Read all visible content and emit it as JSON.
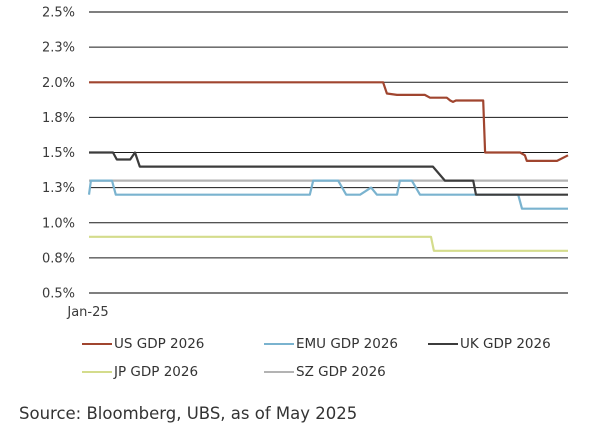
{
  "chart_data": {
    "type": "line",
    "title": "",
    "xlabel": "",
    "ylabel": "",
    "x_tick_labels": [
      {
        "t": 0,
        "label": "Jan-25"
      }
    ],
    "x_unit_note": "t = relative position through the period (0 = Jan-25, 100 = latest, ~May 2025)",
    "xlim": [
      0,
      100
    ],
    "ylim": [
      0.5,
      2.5
    ],
    "y_ticks": [
      {
        "value": 2.5,
        "label": "2.5%"
      },
      {
        "value": 2.25,
        "label": "2.3%"
      },
      {
        "value": 2.0,
        "label": "2.0%"
      },
      {
        "value": 1.75,
        "label": "1.8%"
      },
      {
        "value": 1.5,
        "label": "1.5%"
      },
      {
        "value": 1.25,
        "label": "1.3%"
      },
      {
        "value": 1.0,
        "label": "1.0%"
      },
      {
        "value": 0.75,
        "label": "0.8%"
      },
      {
        "value": 0.5,
        "label": "0.5%"
      }
    ],
    "grid": true,
    "legend_position": "bottom",
    "series": [
      {
        "name": "US GDP 2026",
        "color": "#a0452f",
        "points": [
          [
            0,
            2.0
          ],
          [
            61.4,
            2.0
          ],
          [
            62.2,
            1.92
          ],
          [
            64.3,
            1.91
          ],
          [
            70.1,
            1.91
          ],
          [
            71.2,
            1.89
          ],
          [
            74.7,
            1.89
          ],
          [
            75.4,
            1.87
          ],
          [
            76.0,
            1.86
          ],
          [
            76.6,
            1.87
          ],
          [
            82.3,
            1.87
          ],
          [
            82.7,
            1.5
          ],
          [
            90.0,
            1.5
          ],
          [
            91.0,
            1.48
          ],
          [
            91.4,
            1.44
          ],
          [
            97.7,
            1.44
          ],
          [
            100,
            1.48
          ]
        ]
      },
      {
        "name": "EMU GDP 2026",
        "color": "#7ab3cf",
        "points": [
          [
            0,
            1.2
          ],
          [
            0.4,
            1.3
          ],
          [
            4.8,
            1.3
          ],
          [
            5.6,
            1.2
          ],
          [
            46.1,
            1.2
          ],
          [
            46.8,
            1.3
          ],
          [
            52.0,
            1.3
          ],
          [
            53.7,
            1.2
          ],
          [
            56.6,
            1.2
          ],
          [
            58.9,
            1.25
          ],
          [
            60.1,
            1.2
          ],
          [
            64.3,
            1.2
          ],
          [
            64.9,
            1.3
          ],
          [
            67.4,
            1.3
          ],
          [
            69.1,
            1.2
          ],
          [
            89.6,
            1.2
          ],
          [
            90.4,
            1.1
          ],
          [
            100,
            1.1
          ]
        ]
      },
      {
        "name": "UK GDP 2026",
        "color": "#3c3c3c",
        "points": [
          [
            0,
            1.5
          ],
          [
            5.0,
            1.5
          ],
          [
            5.8,
            1.45
          ],
          [
            8.6,
            1.45
          ],
          [
            9.6,
            1.5
          ],
          [
            10.6,
            1.4
          ],
          [
            71.8,
            1.4
          ],
          [
            74.3,
            1.3
          ],
          [
            80.2,
            1.3
          ],
          [
            80.8,
            1.2
          ],
          [
            100,
            1.2
          ]
        ]
      },
      {
        "name": "JP GDP 2026",
        "color": "#d4dc8c",
        "points": [
          [
            0,
            0.9
          ],
          [
            71.4,
            0.9
          ],
          [
            72.0,
            0.8
          ],
          [
            100,
            0.8
          ]
        ]
      },
      {
        "name": "SZ GDP 2026",
        "color": "#b3b3b3",
        "points": [
          [
            0,
            1.3
          ],
          [
            100,
            1.3
          ]
        ]
      }
    ]
  },
  "legend": [
    {
      "label": "US GDP 2026",
      "color": "#a0452f"
    },
    {
      "label": "EMU GDP 2026",
      "color": "#7ab3cf"
    },
    {
      "label": "UK GDP 2026",
      "color": "#3c3c3c"
    },
    {
      "label": "JP GDP 2026",
      "color": "#d4dc8c"
    },
    {
      "label": "SZ GDP 2026",
      "color": "#b3b3b3"
    }
  ],
  "source": "Source: Bloomberg, UBS, as of May 2025"
}
